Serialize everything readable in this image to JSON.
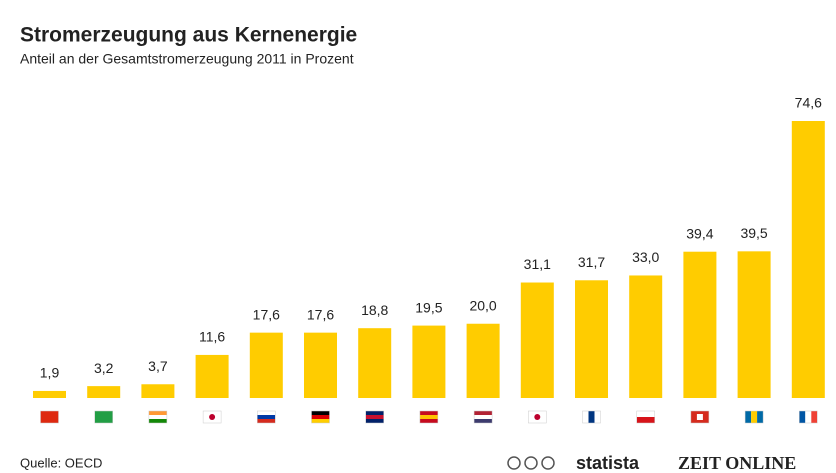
{
  "chart_data": {
    "type": "bar",
    "title": "Stromerzeugung aus Kernenergie",
    "subtitle": "Anteil an der Gesamtstromerzeugung 2011 in Prozent",
    "categories": [
      null,
      null,
      null,
      null,
      null,
      null,
      null,
      null,
      null,
      null,
      null,
      null,
      null,
      null,
      null
    ],
    "values": [
      1.9,
      3.2,
      3.7,
      11.6,
      17.6,
      17.6,
      18.8,
      19.5,
      20.0,
      31.1,
      31.7,
      33.0,
      39.4,
      39.5,
      74.6
    ],
    "value_labels": [
      "1,9",
      "3,2",
      "3,7",
      "11,6",
      "17,6",
      "17,6",
      "18,8",
      "19,5",
      "20,0",
      "31,1",
      "31,7",
      "33,0",
      "39,4",
      "39,5",
      "74,6"
    ],
    "color": "#ffcc00",
    "source": "Quelle: OECD",
    "branding": [
      "statista",
      "ZEIT ONLINE"
    ]
  }
}
